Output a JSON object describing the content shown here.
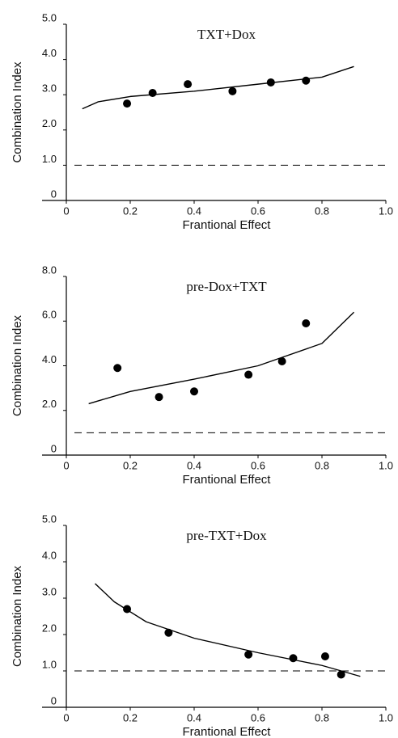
{
  "chart_data": [
    {
      "type": "scatter",
      "title": "TXT+Dox",
      "xlabel": "Frantional Effect",
      "ylabel": "Combination Index",
      "x": [
        0.19,
        0.27,
        0.38,
        0.52,
        0.64,
        0.75
      ],
      "values": [
        2.75,
        3.05,
        3.3,
        3.1,
        3.35,
        3.4
      ],
      "curve": {
        "x": [
          0.05,
          0.1,
          0.2,
          0.4,
          0.6,
          0.8,
          0.9
        ],
        "values": [
          2.6,
          2.8,
          2.95,
          3.1,
          3.3,
          3.5,
          3.8
        ]
      },
      "reference_line": 1,
      "xlim": [
        0,
        1
      ],
      "xticks": [
        0,
        0.2,
        0.4,
        0.6,
        0.8,
        {
          "value": 1,
          "label": "1.0"
        }
      ],
      "ylim": [
        0,
        5
      ],
      "yticks": [
        0,
        {
          "value": 1,
          "label": "1.0"
        },
        {
          "value": 2,
          "label": "2.0"
        },
        {
          "value": 3,
          "label": "3.0"
        },
        {
          "value": 4,
          "label": "4.0"
        },
        {
          "value": 5,
          "label": "5.0"
        }
      ],
      "color": "#000000"
    },
    {
      "type": "scatter",
      "title": "pre-Dox+TXT",
      "xlabel": "Frantional Effect",
      "ylabel": "Combination Index",
      "x": [
        0.16,
        0.29,
        0.4,
        0.57,
        0.675,
        0.75
      ],
      "values": [
        3.9,
        2.6,
        2.85,
        3.6,
        4.2,
        5.9
      ],
      "curve": {
        "x": [
          0.07,
          0.2,
          0.4,
          0.6,
          0.8,
          0.9
        ],
        "values": [
          2.3,
          2.85,
          3.4,
          4.0,
          5.0,
          6.4
        ]
      },
      "reference_line": 1,
      "xlim": [
        0,
        1
      ],
      "xticks": [
        0,
        0.2,
        0.4,
        0.6,
        0.8,
        {
          "value": 1,
          "label": "1.0"
        }
      ],
      "ylim": [
        0,
        8
      ],
      "yticks": [
        0,
        {
          "value": 2,
          "label": "2.0"
        },
        {
          "value": 4,
          "label": "4.0"
        },
        {
          "value": 6,
          "label": "6.0"
        },
        {
          "value": 8,
          "label": "8.0"
        }
      ],
      "color": "#000000"
    },
    {
      "type": "scatter",
      "title": "pre-TXT+Dox",
      "xlabel": "Frantional Effect",
      "ylabel": "Combination Index",
      "x": [
        0.19,
        0.32,
        0.57,
        0.71,
        0.81,
        0.86
      ],
      "values": [
        2.7,
        2.05,
        1.45,
        1.35,
        1.4,
        0.9
      ],
      "curve": {
        "x": [
          0.09,
          0.15,
          0.25,
          0.4,
          0.6,
          0.8,
          0.92
        ],
        "values": [
          3.4,
          2.9,
          2.35,
          1.9,
          1.5,
          1.15,
          0.85
        ]
      },
      "reference_line": 1,
      "xlim": [
        0,
        1
      ],
      "xticks": [
        0,
        0.2,
        0.4,
        0.6,
        0.8,
        {
          "value": 1,
          "label": "1.0"
        }
      ],
      "ylim": [
        0,
        5
      ],
      "yticks": [
        0,
        {
          "value": 1,
          "label": "1.0"
        },
        {
          "value": 2,
          "label": "2.0"
        },
        {
          "value": 3,
          "label": "3.0"
        },
        {
          "value": 4,
          "label": "4.0"
        },
        {
          "value": 5,
          "label": "5.0"
        }
      ],
      "color": "#000000"
    }
  ]
}
